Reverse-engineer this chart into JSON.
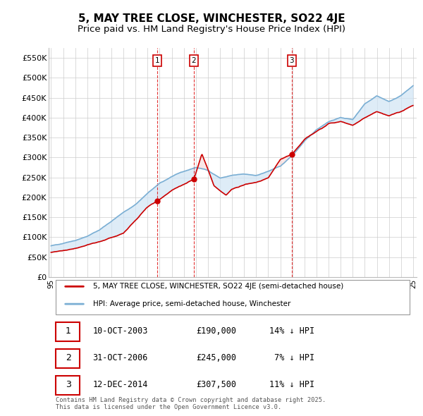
{
  "title": "5, MAY TREE CLOSE, WINCHESTER, SO22 4JE",
  "subtitle": "Price paid vs. HM Land Registry's House Price Index (HPI)",
  "ylim": [
    0,
    575000
  ],
  "yticks": [
    0,
    50000,
    100000,
    150000,
    200000,
    250000,
    300000,
    350000,
    400000,
    450000,
    500000,
    550000
  ],
  "ytick_labels": [
    "£0",
    "£50K",
    "£100K",
    "£150K",
    "£200K",
    "£250K",
    "£300K",
    "£350K",
    "£400K",
    "£450K",
    "£500K",
    "£550K"
  ],
  "legend_entry1": "5, MAY TREE CLOSE, WINCHESTER, SO22 4JE (semi-detached house)",
  "legend_entry2": "HPI: Average price, semi-detached house, Winchester",
  "sale1_date": 2003.78,
  "sale1_price": 190000,
  "sale1_label": "1",
  "sale2_date": 2006.83,
  "sale2_price": 245000,
  "sale2_label": "2",
  "sale3_date": 2014.95,
  "sale3_price": 307500,
  "sale3_label": "3",
  "hpi_color": "#7bafd4",
  "hpi_fill_color": "#d0e4f5",
  "price_color": "#cc0000",
  "background_color": "#ffffff",
  "grid_color": "#cccccc",
  "title_fontsize": 11,
  "subtitle_fontsize": 9.5,
  "footnote": "Contains HM Land Registry data © Crown copyright and database right 2025.\nThis data is licensed under the Open Government Licence v3.0.",
  "hpi_anchors_x": [
    1995,
    1996,
    1997,
    1998,
    1999,
    2000,
    2001,
    2002,
    2003,
    2004,
    2005,
    2006,
    2007,
    2008,
    2009,
    2010,
    2011,
    2012,
    2013,
    2014,
    2015,
    2016,
    2017,
    2018,
    2019,
    2020,
    2021,
    2022,
    2023,
    2024,
    2025
  ],
  "hpi_anchors_y": [
    78000,
    85000,
    92000,
    102000,
    118000,
    140000,
    162000,
    182000,
    210000,
    235000,
    252000,
    265000,
    275000,
    268000,
    248000,
    255000,
    258000,
    255000,
    265000,
    278000,
    305000,
    340000,
    370000,
    390000,
    400000,
    395000,
    435000,
    455000,
    440000,
    455000,
    480000
  ],
  "price_anchors_x": [
    1995,
    1997,
    1999,
    2001,
    2003,
    2003.78,
    2005,
    2006.83,
    2007.5,
    2008.5,
    2009.5,
    2010,
    2011,
    2012,
    2013,
    2014,
    2014.95,
    2016,
    2017,
    2018,
    2019,
    2020,
    2021,
    2022,
    2023,
    2024,
    2025
  ],
  "price_anchors_y": [
    62000,
    72000,
    88000,
    110000,
    175000,
    190000,
    218000,
    245000,
    310000,
    230000,
    205000,
    220000,
    232000,
    238000,
    248000,
    295000,
    307500,
    345000,
    365000,
    385000,
    390000,
    380000,
    400000,
    415000,
    405000,
    415000,
    430000
  ]
}
